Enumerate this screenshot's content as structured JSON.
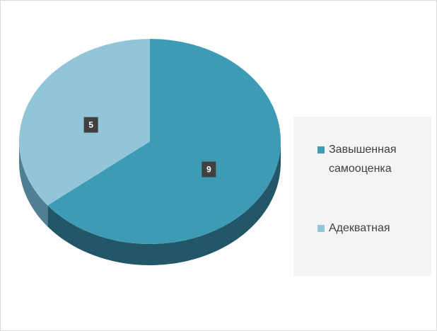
{
  "chart_data": {
    "type": "pie",
    "categories": [
      "Завышенная самооценка",
      "Адекватная"
    ],
    "values": [
      9,
      5
    ],
    "colors": [
      "#3e9bb5",
      "#93c5d8"
    ],
    "side_colors": [
      "#22576a",
      "#4f7f90"
    ],
    "legend": "right"
  }
}
